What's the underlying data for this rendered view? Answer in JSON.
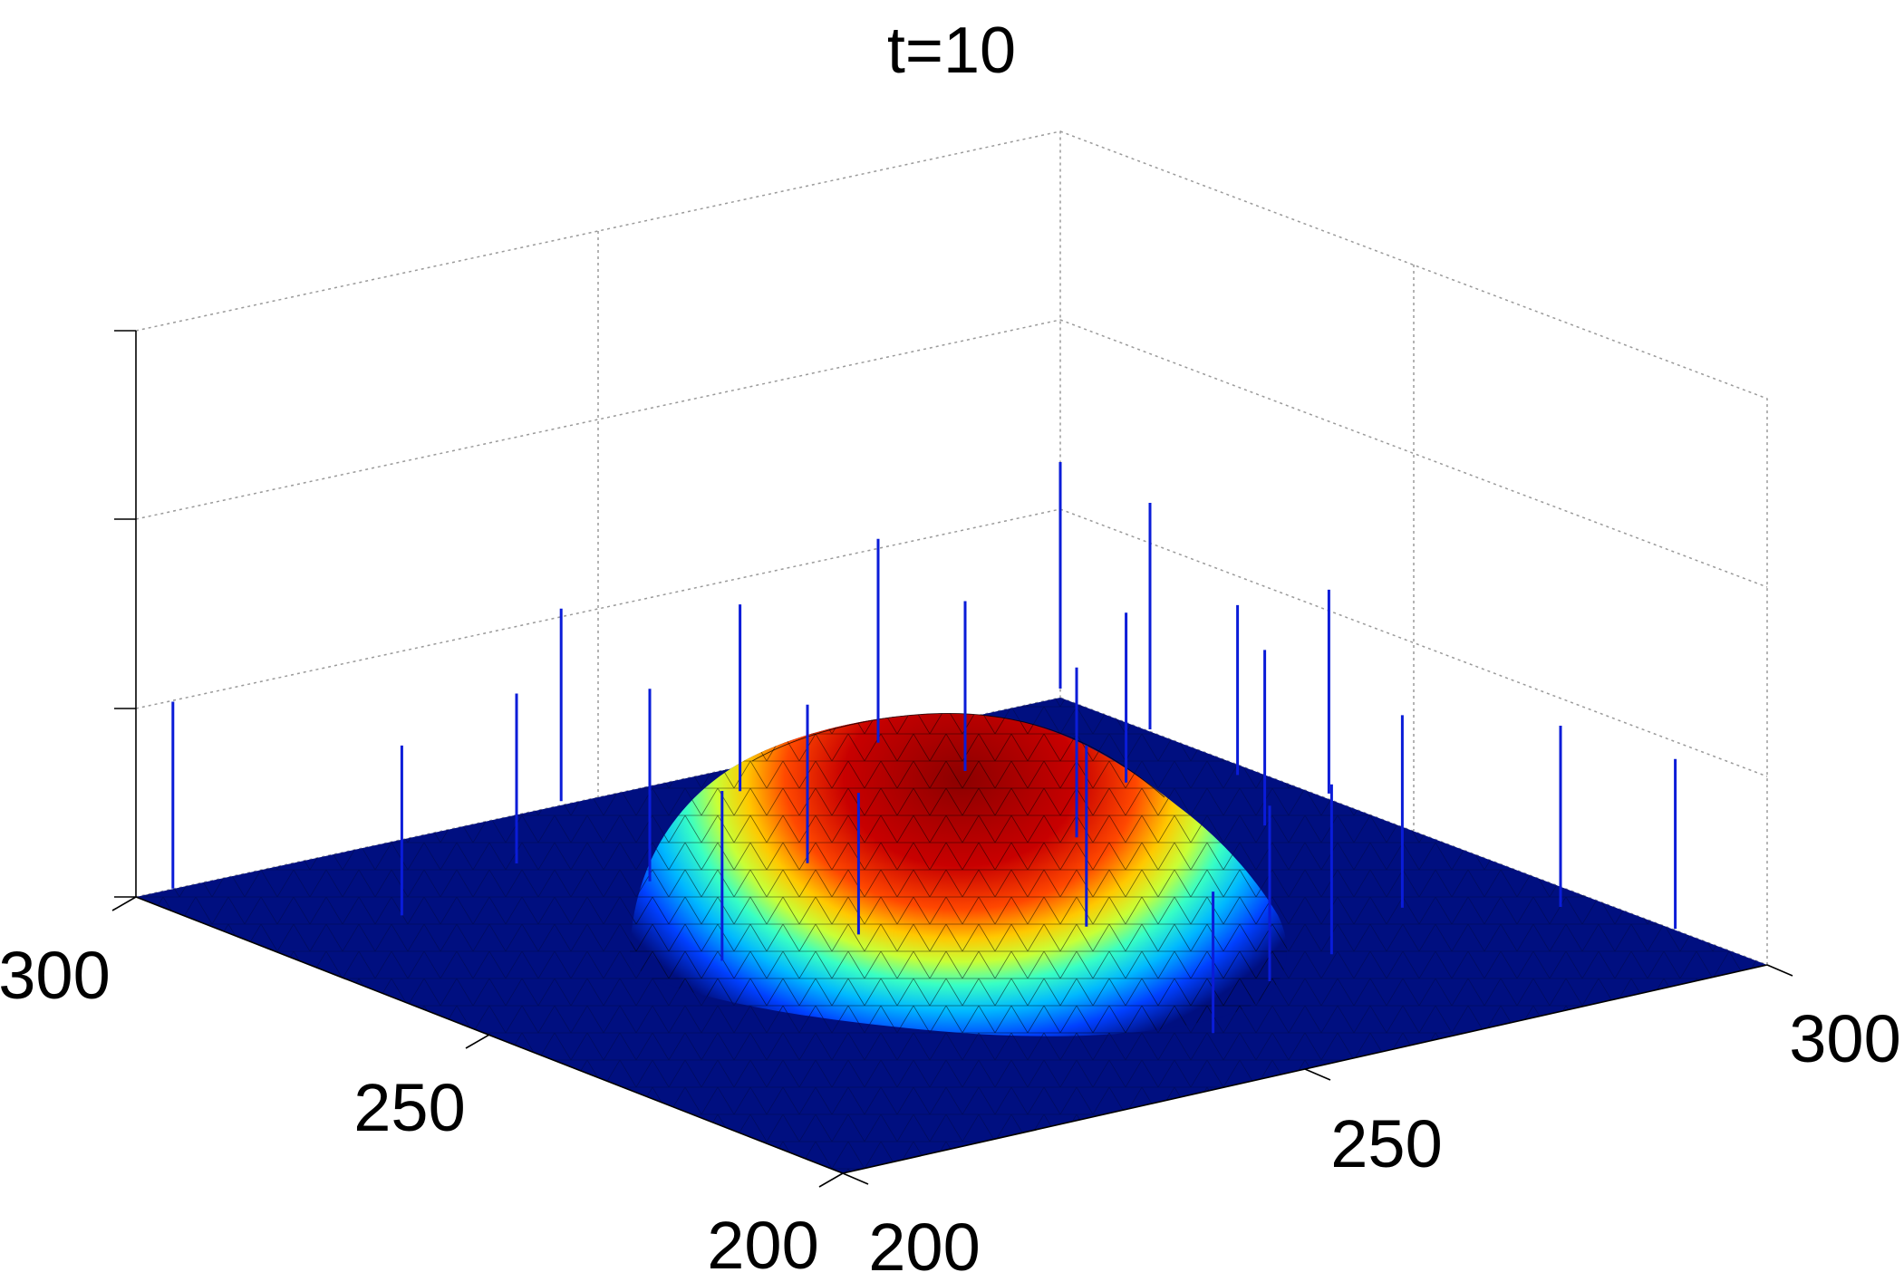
{
  "chart_data": {
    "type": "surface",
    "title": "t=10",
    "xlabel": "",
    "ylabel": "",
    "zlabel": "",
    "x_ticks": [
      "200",
      "250",
      "300"
    ],
    "y_ticks": [
      "200",
      "250",
      "300"
    ],
    "z_ticks": [
      "",
      "",
      "",
      ""
    ],
    "xlim": [
      200,
      300
    ],
    "ylim": [
      200,
      300
    ],
    "grid": true,
    "colormap": "jet",
    "floor_color": "#000f80",
    "stem_color": "#0a1cd8",
    "surface": {
      "description_type": "gaussian-like bump over flat floor, triangular mesh",
      "peak_center": [
        251,
        266
      ],
      "peak_height_fraction": 0.33,
      "plateau_radius": 15,
      "falloff_radius": 40
    },
    "stems": [
      {
        "x": 204,
        "y": 300,
        "height_fraction": 0.33
      },
      {
        "x": 215,
        "y": 282,
        "height_fraction": 0.3
      },
      {
        "x": 232,
        "y": 288,
        "height_fraction": 0.3
      },
      {
        "x": 238,
        "y": 277,
        "height_fraction": 0.34
      },
      {
        "x": 229,
        "y": 255,
        "height_fraction": 0.3
      },
      {
        "x": 246,
        "y": 300,
        "height_fraction": 0.34
      },
      {
        "x": 260,
        "y": 293,
        "height_fraction": 0.33
      },
      {
        "x": 252,
        "y": 273,
        "height_fraction": 0.28
      },
      {
        "x": 243,
        "y": 254,
        "height_fraction": 0.25
      },
      {
        "x": 260,
        "y": 244,
        "height_fraction": 0.32
      },
      {
        "x": 278,
        "y": 297,
        "height_fraction": 0.36
      },
      {
        "x": 300,
        "y": 300,
        "height_fraction": 0.4
      },
      {
        "x": 279,
        "y": 286,
        "height_fraction": 0.3
      },
      {
        "x": 299,
        "y": 286,
        "height_fraction": 0.4
      },
      {
        "x": 288,
        "y": 275,
        "height_fraction": 0.3
      },
      {
        "x": 297,
        "y": 271,
        "height_fraction": 0.3
      },
      {
        "x": 275,
        "y": 265,
        "height_fraction": 0.3
      },
      {
        "x": 300,
        "y": 262,
        "height_fraction": 0.36
      },
      {
        "x": 290,
        "y": 258,
        "height_fraction": 0.31
      },
      {
        "x": 285,
        "y": 232,
        "height_fraction": 0.34
      },
      {
        "x": 296,
        "y": 224,
        "height_fraction": 0.32
      },
      {
        "x": 300,
        "y": 213,
        "height_fraction": 0.3
      },
      {
        "x": 263,
        "y": 222,
        "height_fraction": 0.31
      },
      {
        "x": 272,
        "y": 225,
        "height_fraction": 0.3
      },
      {
        "x": 250,
        "y": 213,
        "height_fraction": 0.25
      }
    ]
  }
}
